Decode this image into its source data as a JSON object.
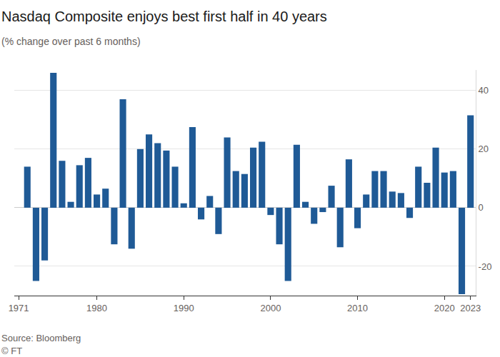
{
  "chart_data": {
    "type": "bar",
    "title": "Nasdaq Composite enjoys best first half in 40 years",
    "subtitle": "(% change over past 6 months)",
    "source": "Source: Bloomberg",
    "credit": "© FT",
    "x": [
      1972,
      1973,
      1974,
      1975,
      1976,
      1977,
      1978,
      1979,
      1980,
      1981,
      1982,
      1983,
      1984,
      1985,
      1986,
      1987,
      1988,
      1989,
      1990,
      1991,
      1992,
      1993,
      1994,
      1995,
      1996,
      1997,
      1998,
      1999,
      2000,
      2001,
      2002,
      2003,
      2004,
      2005,
      2006,
      2007,
      2008,
      2009,
      2010,
      2011,
      2012,
      2013,
      2014,
      2015,
      2016,
      2017,
      2018,
      2019,
      2020,
      2021,
      2022,
      2023
    ],
    "values": [
      14,
      -25,
      -18,
      46,
      16,
      2,
      14.5,
      17,
      4.5,
      6.5,
      -12.5,
      37,
      -14,
      20,
      25,
      22,
      19.5,
      14,
      1.5,
      27.5,
      -4,
      4,
      -9,
      24,
      12.5,
      11.5,
      20.5,
      22.5,
      -2.5,
      -12.5,
      -25,
      21.5,
      2,
      -5.5,
      -1.5,
      7.5,
      -13.5,
      16.5,
      -7,
      4.5,
      12.5,
      12.5,
      5.5,
      5,
      -3.5,
      14,
      8.5,
      20.5,
      12,
      12.5,
      -29.5,
      31.5
    ],
    "color": "#1f5a96",
    "xlim": [
      1970.5,
      2023.6
    ],
    "xticks": [
      1971,
      1980,
      1990,
      2000,
      2010,
      2020,
      2023
    ],
    "ylim": [
      -30,
      47
    ],
    "yticks": [
      -20,
      0,
      20,
      40
    ],
    "grid": true
  }
}
